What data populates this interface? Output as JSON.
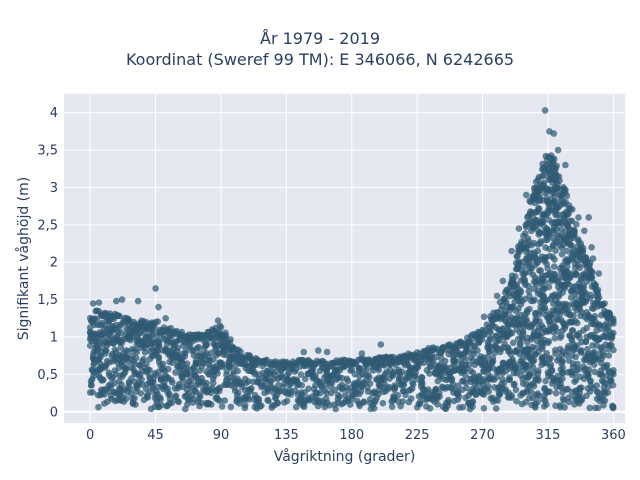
{
  "chart_data": {
    "type": "scatter",
    "title": "År 1979 - 2019",
    "subtitle": "Koordinat (Sweref 99 TM): E 346066, N 6242665",
    "xlabel": "Vågriktning (grader)",
    "ylabel": "Signifikant våghöjd (m)",
    "xlim": [
      -18,
      368
    ],
    "ylim": [
      -0.15,
      4.25
    ],
    "x_ticks": [
      0,
      45,
      90,
      135,
      180,
      225,
      270,
      315,
      360
    ],
    "x_tick_labels": [
      "0",
      "45",
      "90",
      "135",
      "180",
      "225",
      "270",
      "315",
      "360"
    ],
    "y_ticks": [
      0,
      0.5,
      1,
      1.5,
      2,
      2.5,
      3,
      3.5,
      4
    ],
    "y_tick_labels": [
      "0",
      "0,5",
      "1",
      "1,5",
      "2",
      "2,5",
      "3",
      "3,5",
      "4"
    ],
    "grid": true,
    "marker_color": "#2f5a73",
    "envelope": {
      "direction": [
        0,
        5,
        10,
        20,
        30,
        40,
        45,
        50,
        60,
        70,
        80,
        90,
        95,
        100,
        110,
        120,
        135,
        150,
        165,
        180,
        195,
        210,
        225,
        240,
        255,
        270,
        280,
        290,
        300,
        305,
        310,
        315,
        320,
        325,
        330,
        335,
        340,
        345,
        350,
        355,
        360
      ],
      "max_height": [
        1.35,
        1.4,
        1.35,
        1.3,
        1.25,
        1.2,
        1.25,
        1.15,
        1.1,
        1.05,
        1.1,
        1.15,
        1.0,
        0.85,
        0.75,
        0.7,
        0.68,
        0.7,
        0.68,
        0.7,
        0.72,
        0.75,
        0.8,
        0.85,
        0.95,
        1.1,
        1.4,
        1.8,
        2.6,
        3.0,
        3.3,
        3.5,
        3.4,
        3.1,
        2.8,
        2.5,
        2.2,
        1.9,
        1.6,
        1.35,
        1.3
      ]
    },
    "outliers": [
      {
        "x": 313,
        "y": 4.03
      },
      {
        "x": 316,
        "y": 3.75
      },
      {
        "x": 319,
        "y": 3.72
      },
      {
        "x": 322,
        "y": 3.5
      },
      {
        "x": 327,
        "y": 3.3
      },
      {
        "x": 45,
        "y": 1.65
      },
      {
        "x": 33,
        "y": 1.48
      },
      {
        "x": 18,
        "y": 1.48
      },
      {
        "x": 22,
        "y": 1.5
      },
      {
        "x": 2,
        "y": 1.45
      },
      {
        "x": 6,
        "y": 1.46
      },
      {
        "x": 47,
        "y": 1.4
      },
      {
        "x": 88,
        "y": 1.22
      },
      {
        "x": 52,
        "y": 1.25
      },
      {
        "x": 271,
        "y": 1.27
      },
      {
        "x": 280,
        "y": 1.55
      },
      {
        "x": 284,
        "y": 1.75
      },
      {
        "x": 290,
        "y": 2.15
      },
      {
        "x": 295,
        "y": 2.45
      },
      {
        "x": 300,
        "y": 2.9
      },
      {
        "x": 340,
        "y": 2.42
      },
      {
        "x": 345,
        "y": 2.2
      },
      {
        "x": 346,
        "y": 2.05
      },
      {
        "x": 343,
        "y": 2.6
      },
      {
        "x": 336,
        "y": 2.6
      },
      {
        "x": 350,
        "y": 1.85
      },
      {
        "x": 348,
        "y": 1.55
      },
      {
        "x": 354,
        "y": 1.45
      },
      {
        "x": 357,
        "y": 1.32
      },
      {
        "x": 200,
        "y": 0.9
      },
      {
        "x": 187,
        "y": 0.78
      },
      {
        "x": 157,
        "y": 0.82
      },
      {
        "x": 147,
        "y": 0.8
      },
      {
        "x": 163,
        "y": 0.8
      },
      {
        "x": 233,
        "y": 0.85
      },
      {
        "x": 254,
        "y": 0.88
      },
      {
        "x": 236,
        "y": 0.86
      },
      {
        "x": 262,
        "y": 1.0
      }
    ]
  }
}
